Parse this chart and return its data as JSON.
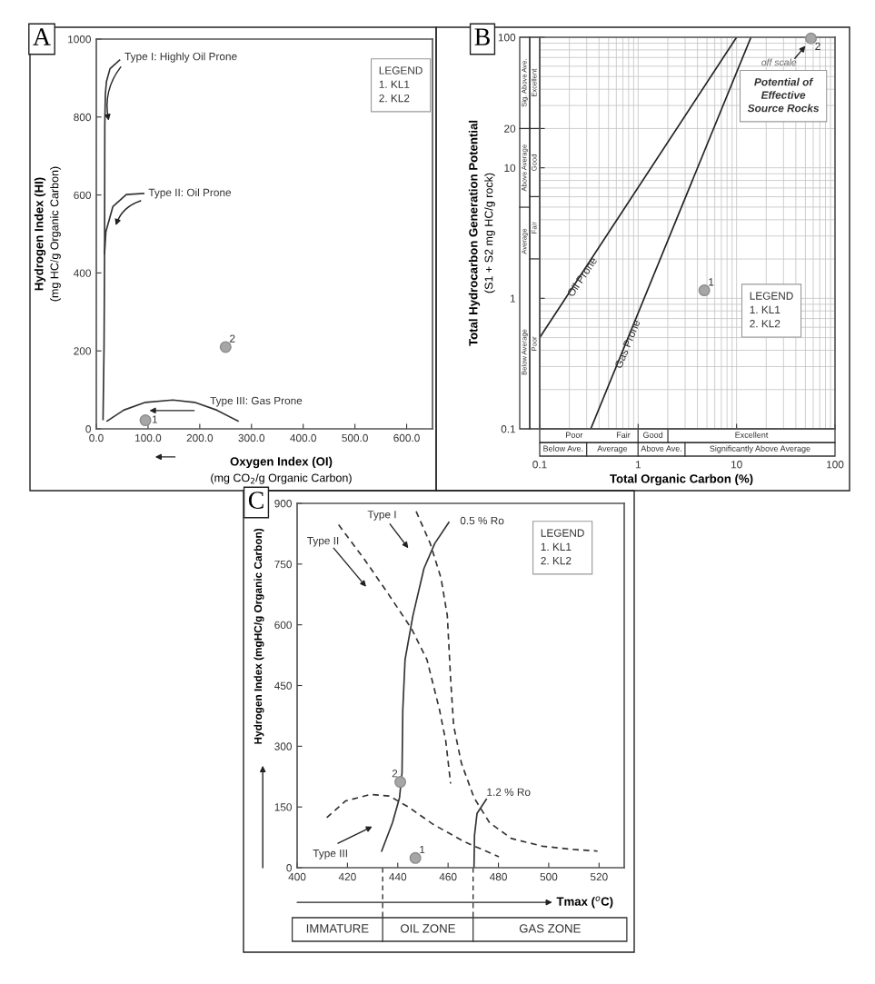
{
  "chart_data": [
    {
      "type": "scatter",
      "title": "A",
      "xlabel": "Oxygen Index (OI)\n(mg CO$_{2}$/g Organic Carbon)",
      "ylabel": "Hydrogen Index (HI)\n(mg HC/g Organic Carbon)",
      "xlim": [
        0,
        650
      ],
      "ylim": [
        0,
        1000
      ],
      "xticks": [
        {
          "value": 0,
          "label": "0.0"
        },
        {
          "value": 100,
          "label": "100.0"
        },
        {
          "value": 200,
          "label": "200.0"
        },
        {
          "value": 300,
          "label": "300.0"
        },
        {
          "value": 400,
          "label": "400.0"
        },
        {
          "value": 500,
          "label": "500.0"
        },
        {
          "value": 600,
          "label": "600.0"
        }
      ],
      "yticks": [
        0,
        200,
        400,
        600,
        800,
        1000
      ],
      "series": [
        {
          "type": "line",
          "color": "#333333",
          "x": [
            45,
            26.5,
            19.6,
            17.5,
            16.4,
            16,
            15,
            13
          ],
          "values": [
            946,
            924,
            891,
            859,
            779,
            458,
            217,
            24
          ]
        },
        {
          "type": "line",
          "color": "#333333",
          "x": [
            91.5,
            58,
            32,
            18.5,
            16
          ],
          "values": [
            604,
            601,
            570,
            506,
            450
          ]
        },
        {
          "type": "line",
          "color": "#333333",
          "x": [
            21,
            53,
            95,
            148,
            190,
            233,
            274
          ],
          "values": [
            20,
            48,
            68,
            74,
            68,
            48,
            20
          ]
        },
        {
          "color": "#a6a6a6",
          "marker": "circle",
          "x": [
            95,
            250
          ],
          "values": [
            22,
            210
          ]
        }
      ],
      "annotations": [
        {
          "text": "Type I: Highly Oil Prone",
          "x": 24,
          "y": 791
        },
        "Type II: Oil Prone",
        "Type III: Gas Prone",
        {
          "text": "1",
          "x": 95,
          "y": 22
        },
        {
          "text": "2",
          "x": 250,
          "y": 210
        },
        "LEGEND\n1. KL1\n2. KL2"
      ]
    },
    {
      "type": "scatter",
      "title": "B",
      "xlabel": "Total Organic Carbon (%)",
      "ylabel": "Total Hydrocarbon Generation Potential\n(S1 + S2 mg HC/g rock)",
      "log": "xy",
      "grid": true,
      "xlim": [
        0.1,
        100
      ],
      "ylim": [
        0.1,
        100
      ],
      "xticks": [
        0.1,
        1,
        10,
        100
      ],
      "yticks": [
        0.1,
        1,
        10,
        20,
        100
      ],
      "series": [
        {
          "type": "line",
          "color": "#222222",
          "x": [
            0.1,
            10
          ],
          "values": [
            0.5,
            100
          ]
        },
        {
          "type": "line",
          "color": "#222222",
          "x": [
            0.33,
            14
          ],
          "values": [
            0.1,
            100
          ]
        },
        {
          "color": "#a6a6a6",
          "marker": "circle",
          "x": [
            4.7,
            57
          ],
          "values": [
            1.15,
            98
          ]
        }
      ],
      "annotations": [
        {
          "text": "Oil Prone",
          "x": 0.17,
          "y": 0.95
        },
        {
          "text": "Gas Prone",
          "x": 0.52,
          "y": 0.27
        },
        {
          "text": "1",
          "x": 4.7,
          "y": 1.15
        },
        {
          "text": "2",
          "x": 57,
          "y": 98
        },
        "off scale",
        "Potential of\nEffective\nSource Rocks",
        "LEGEND\n1. KL1\n2. KL2",
        "Poor",
        "Fair",
        "Good",
        "Excellent",
        "Below Ave.",
        "Average",
        "Above Ave.",
        "Significantly Above Average",
        "Poor",
        "Fair",
        "Good",
        "Excellent",
        "Below Average",
        "Average",
        "Above Average",
        "Sig. Above Ave."
      ]
    },
    {
      "type": "scatter",
      "title": "C",
      "xlabel": "Tmax ($^{o}$C)",
      "ylabel": "Hydrogen Index (mgHC/g Organic Carbon)",
      "xlim": [
        400,
        530
      ],
      "ylim": [
        0,
        900
      ],
      "xticks": [
        400,
        420,
        440,
        460,
        480,
        500,
        520
      ],
      "yticks": [
        0,
        150,
        300,
        450,
        600,
        750,
        900
      ],
      "series": [
        {
          "type": "line",
          "color": "#333333",
          "line_style": "dashed",
          "x": [
            416.5,
            426.7,
            435.4,
            445.4,
            451.6,
            456.6,
            459.1,
            461
          ],
          "values": [
            847,
            762,
            684,
            591,
            514,
            390,
            312,
            208
          ]
        },
        {
          "type": "line",
          "color": "#333333",
          "line_style": "dashed",
          "x": [
            447.3,
            452.9,
            457.2,
            459.7,
            461,
            462.2,
            465.3,
            470.3,
            476.5,
            485.2,
            497.6,
            510,
            519.4
          ],
          "values": [
            880,
            801,
            715,
            622,
            467,
            351,
            258,
            173,
            111,
            72,
            53,
            45,
            41
          ]
        },
        {
          "type": "line",
          "color": "#333333",
          "line_style": "dashed",
          "x": [
            411.8,
            419.3,
            429.2,
            436.7,
            444.2,
            454.1,
            466.5,
            480.2
          ],
          "values": [
            124,
            165,
            181,
            177,
            150,
            107,
            64,
            27
          ]
        },
        {
          "type": "line",
          "color": "#333333",
          "x": [
            433.6,
            437.9,
            440.7,
            441.7,
            442,
            442.9,
            446,
            450.4,
            454.7,
            460.3
          ],
          "values": [
            41,
            111,
            173,
            235,
            390,
            514,
            622,
            739,
            801,
            853
          ]
        },
        {
          "type": "line",
          "color": "#333333",
          "x": [
            470.3,
            470.5,
            471.5,
            475.2
          ],
          "values": [
            0,
            80,
            134,
            169
          ]
        },
        {
          "color": "#a6a6a6",
          "marker": "circle",
          "x": [
            447,
            441
          ],
          "values": [
            24,
            212
          ]
        }
      ],
      "annotations": [
        "Type I",
        "Type II",
        "Type III",
        "0.5 % Ro",
        "1.2 % Ro",
        {
          "text": "1",
          "x": 447,
          "y": 24
        },
        {
          "text": "2",
          "x": 441,
          "y": 212
        },
        "LEGEND\n1. KL1\n2. KL2",
        "IMMATURE",
        "OIL ZONE",
        "GAS ZONE"
      ]
    }
  ]
}
